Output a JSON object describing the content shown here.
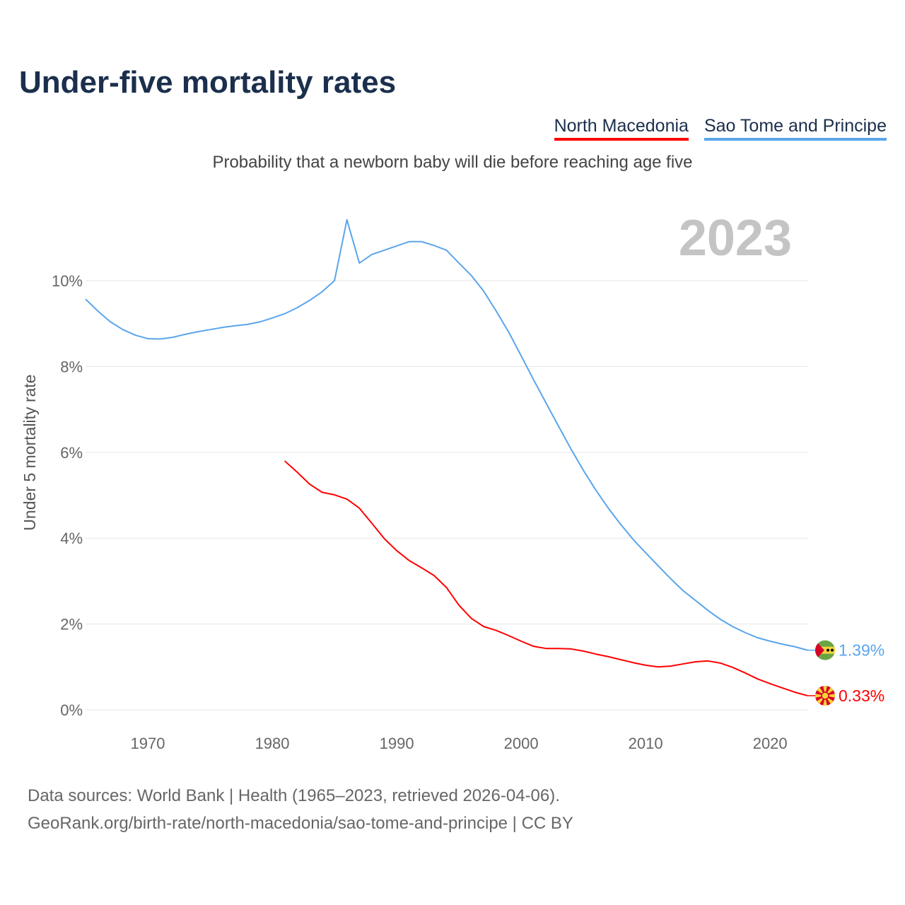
{
  "title": "Under-five mortality rates",
  "subtitle": "Probability that a newborn baby will die before reaching age five",
  "year_watermark": "2023",
  "footer": {
    "line1": "Data sources: World Bank | Health (1965–2023, retrieved 2026-04-06).",
    "line2": "GeoRank.org/birth-rate/north-macedonia/sao-tome-and-principe | CC BY"
  },
  "chart_data": {
    "type": "line",
    "title": "Under-five mortality rates",
    "xlabel": "",
    "ylabel": "Under 5 mortality rate",
    "xlim": [
      1965,
      2023
    ],
    "ylim": [
      0,
      11.5
    ],
    "x_ticks": [
      1970,
      1980,
      1990,
      2000,
      2010,
      2020
    ],
    "y_ticks": [
      0,
      2,
      4,
      6,
      8,
      10
    ],
    "y_tick_labels": [
      "0%",
      "2%",
      "4%",
      "6%",
      "8%",
      "10%"
    ],
    "grid": true,
    "legend_placement": "top-right",
    "series": [
      {
        "name": "North Macedonia",
        "color": "#ff0000",
        "end_label": "0.33%",
        "flag": "north-macedonia-flag",
        "start_year": 1981,
        "values": [
          5.8,
          5.54,
          5.26,
          5.07,
          5.01,
          4.91,
          4.7,
          4.35,
          3.99,
          3.71,
          3.48,
          3.31,
          3.13,
          2.85,
          2.44,
          2.13,
          1.94,
          1.85,
          1.73,
          1.6,
          1.48,
          1.43,
          1.43,
          1.42,
          1.37,
          1.3,
          1.24,
          1.17,
          1.1,
          1.04,
          1.0,
          1.02,
          1.07,
          1.12,
          1.14,
          1.09,
          0.99,
          0.86,
          0.72,
          0.61,
          0.51,
          0.41,
          0.33
        ]
      },
      {
        "name": "Sao Tome and Principe",
        "color": "#5aa5ec",
        "end_label": "1.39%",
        "flag": "sao-tome-flag",
        "start_year": 1965,
        "values": [
          9.57,
          9.29,
          9.04,
          8.86,
          8.73,
          8.65,
          8.64,
          8.68,
          8.75,
          8.81,
          8.86,
          8.91,
          8.95,
          8.98,
          9.04,
          9.13,
          9.23,
          9.37,
          9.54,
          9.74,
          10.0,
          11.42,
          10.41,
          10.61,
          10.71,
          10.81,
          10.91,
          10.91,
          10.82,
          10.71,
          10.41,
          10.12,
          9.75,
          9.29,
          8.8,
          8.25,
          7.69,
          7.15,
          6.61,
          6.08,
          5.58,
          5.12,
          4.7,
          4.32,
          3.97,
          3.66,
          3.36,
          3.06,
          2.78,
          2.55,
          2.32,
          2.11,
          1.94,
          1.8,
          1.68,
          1.6,
          1.53,
          1.47,
          1.39
        ]
      }
    ]
  }
}
